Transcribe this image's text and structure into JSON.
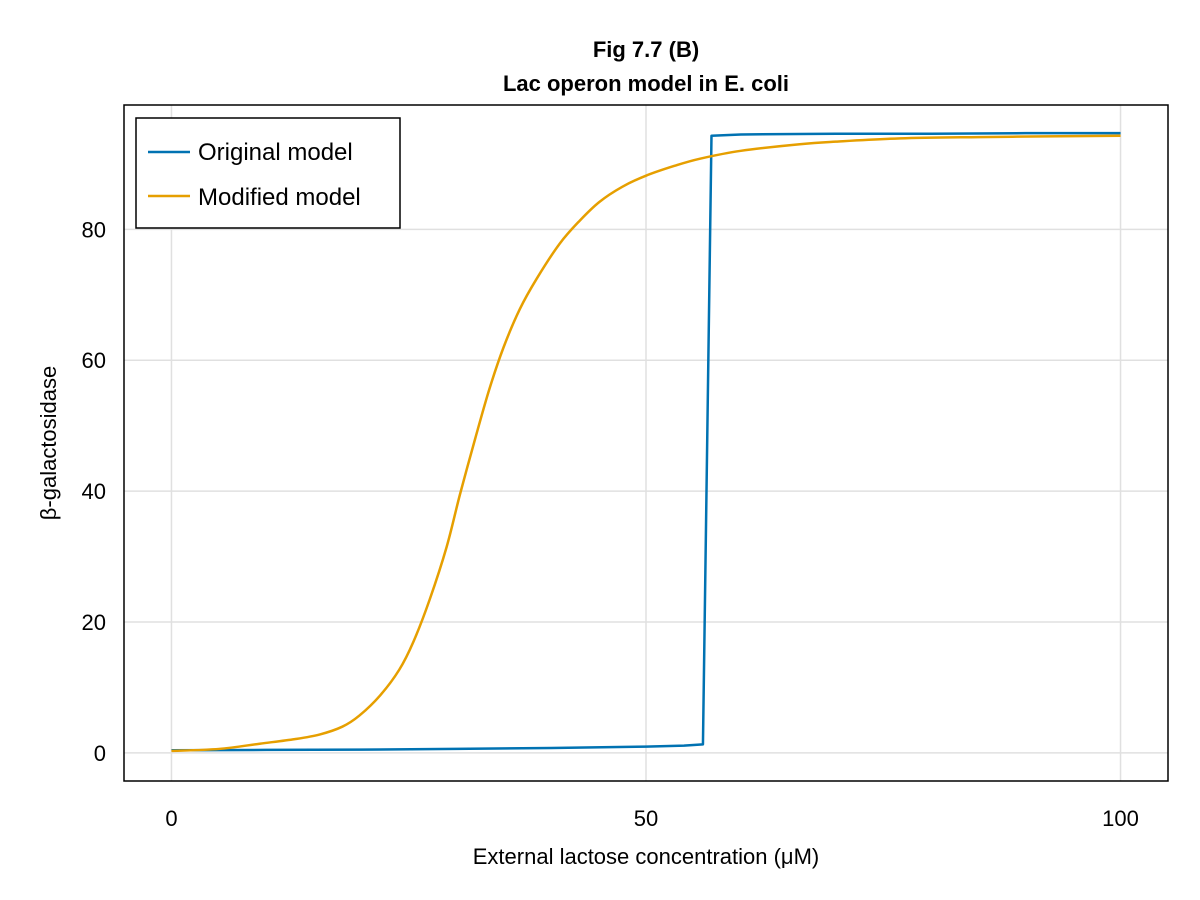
{
  "chart_data": {
    "type": "line",
    "title": "Fig 7.7 (B)",
    "subtitle": "Lac operon model in E. coli",
    "xlabel": "External lactose concentration (μM)",
    "ylabel": "β-galactosidase",
    "xlim": [
      -5,
      105
    ],
    "ylim": [
      -4.3,
      99
    ],
    "xticks": [
      0,
      50,
      100
    ],
    "xtick_labels": [
      "0",
      "50",
      "100"
    ],
    "yticks": [
      0,
      20,
      40,
      60,
      80
    ],
    "ytick_labels": [
      "0",
      "20",
      "40",
      "60",
      "80"
    ],
    "grid": true,
    "legend_position": "top-left",
    "series": [
      {
        "name": "Original model",
        "color": "#0072b2",
        "x": [
          0,
          10,
          20,
          30,
          40,
          50,
          54,
          56.0,
          56.9,
          60,
          70,
          80,
          90,
          100
        ],
        "y": [
          0.4,
          0.45,
          0.5,
          0.6,
          0.75,
          0.95,
          1.1,
          1.3,
          94.3,
          94.5,
          94.6,
          94.6,
          94.7,
          94.7
        ]
      },
      {
        "name": "Modified model",
        "color": "#e69f00",
        "x": [
          0,
          5,
          9.3,
          13,
          15.6,
          18,
          19.8,
          22,
          24,
          25.5,
          27.2,
          29,
          30.4,
          32,
          33.5,
          35,
          36.7,
          38.5,
          40.9,
          43,
          45.1,
          47.5,
          50,
          53,
          55.7,
          60,
          66.2,
          70,
          76.8,
          85,
          92,
          100
        ],
        "y": [
          0.3,
          0.6,
          1.4,
          2.1,
          2.8,
          4.0,
          5.7,
          8.8,
          12.7,
          17.0,
          23.4,
          31.5,
          39.5,
          48.0,
          55.6,
          62.0,
          67.8,
          72.5,
          77.8,
          81.3,
          84.2,
          86.5,
          88.2,
          89.7,
          90.8,
          92.0,
          93.0,
          93.4,
          93.9,
          94.1,
          94.2,
          94.3
        ]
      }
    ]
  }
}
